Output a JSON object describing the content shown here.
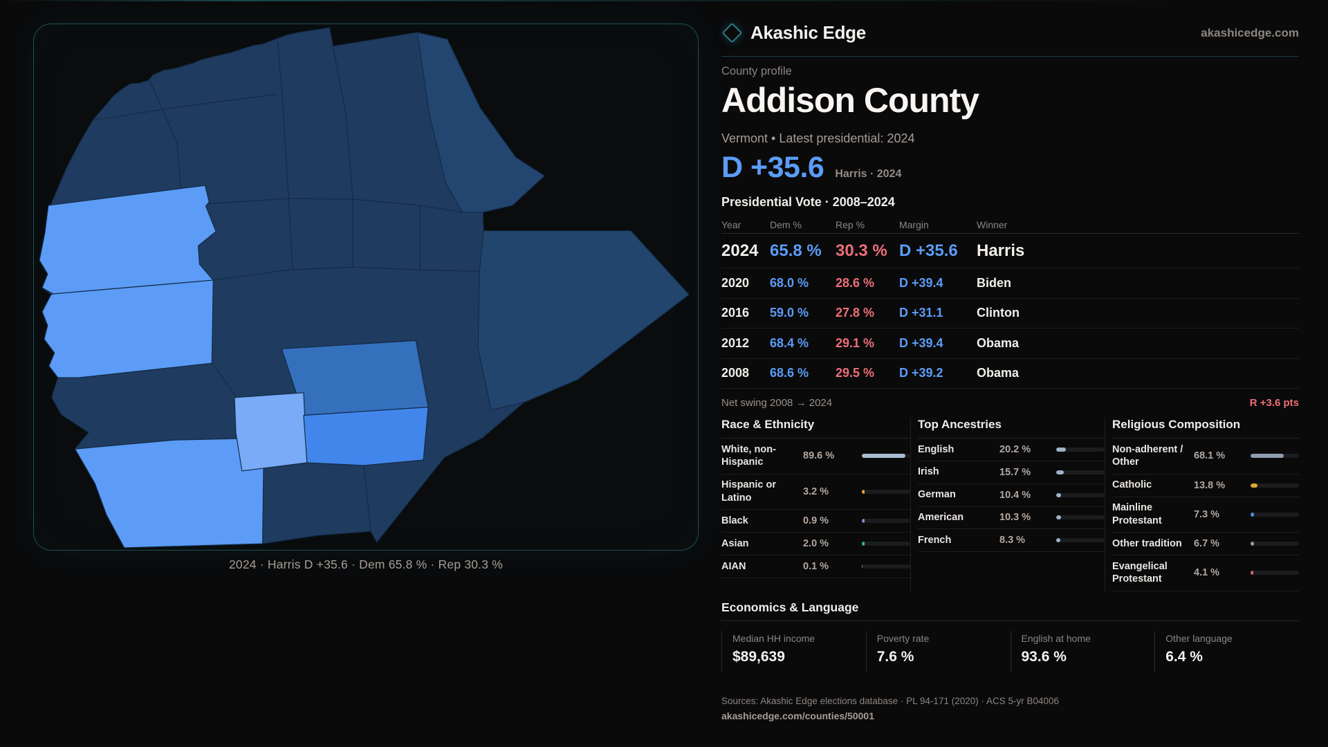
{
  "colors": {
    "dem_blue": "#5b9cf6",
    "rep_red": "#ee6f78",
    "map_dark": "#1f3b5f",
    "map_dark_alt": "#234670",
    "map_diamond": "#22456e",
    "map_light": "#5c9cf6",
    "map_medium": "#3570bd",
    "map_bright": "#4286ec",
    "map_pale": "#79abf7",
    "panel_border": "#1d5058"
  },
  "header": {
    "brand": "Akashic Edge",
    "site": "akashicedge.com"
  },
  "profile": {
    "kicker": "County profile",
    "title": "Addison County",
    "subtitle": "Vermont • Latest presidential: 2024",
    "headline_margin": "D +35.6",
    "headline_note": "Harris · 2024"
  },
  "results": {
    "title": "Presidential Vote · 2008–2024",
    "columns": [
      "Year",
      "Dem %",
      "Rep %",
      "Margin",
      "Winner"
    ],
    "rows": [
      {
        "year": "2024",
        "dem": "65.8 %",
        "rep": "30.3 %",
        "margin": "D +35.6",
        "winner": "Harris"
      },
      {
        "year": "2020",
        "dem": "68.0 %",
        "rep": "28.6 %",
        "margin": "D +39.4",
        "winner": "Biden"
      },
      {
        "year": "2016",
        "dem": "59.0 %",
        "rep": "27.8 %",
        "margin": "D +31.1",
        "winner": "Clinton"
      },
      {
        "year": "2012",
        "dem": "68.4 %",
        "rep": "29.1 %",
        "margin": "D +39.4",
        "winner": "Obama"
      },
      {
        "year": "2008",
        "dem": "68.6 %",
        "rep": "29.5 %",
        "margin": "D +39.2",
        "winner": "Obama"
      }
    ],
    "net_swing_label": "Net swing 2008 → 2024",
    "net_swing_value": "R +3.6 pts"
  },
  "demographics": [
    {
      "title": "Race & Ethnicity",
      "rows": [
        {
          "label": "White, non-Hispanic",
          "value": "89.6 %",
          "pct": 89.6,
          "color": "#a9bcd3"
        },
        {
          "label": "Hispanic or Latino",
          "value": "3.2 %",
          "pct": 3.2,
          "color": "#e6a23a"
        },
        {
          "label": "Black",
          "value": "0.9 %",
          "pct": 0.9,
          "color": "#8b82dd"
        },
        {
          "label": "Asian",
          "value": "2.0 %",
          "pct": 2.0,
          "color": "#2ebd86"
        },
        {
          "label": "AIAN",
          "value": "0.1 %",
          "pct": 0.1,
          "color": "#9aa4ad"
        }
      ]
    },
    {
      "title": "Top Ancestries",
      "rows": [
        {
          "label": "English",
          "value": "20.2 %",
          "pct": 20.2,
          "color": "#9fb2c8"
        },
        {
          "label": "Irish",
          "value": "15.7 %",
          "pct": 15.7,
          "color": "#9fb2c8"
        },
        {
          "label": "German",
          "value": "10.4 %",
          "pct": 10.4,
          "color": "#9fb2c8"
        },
        {
          "label": "American",
          "value": "10.3 %",
          "pct": 10.3,
          "color": "#9fb2c8"
        },
        {
          "label": "French",
          "value": "8.3 %",
          "pct": 8.3,
          "color": "#9fb2c8"
        }
      ]
    },
    {
      "title": "Religious Composition",
      "rows": [
        {
          "label": "Non-adherent / Other",
          "value": "68.1 %",
          "pct": 68.1,
          "color": "#8e9cb0"
        },
        {
          "label": "Catholic",
          "value": "13.8 %",
          "pct": 13.8,
          "color": "#d9a835"
        },
        {
          "label": "Mainline Protestant",
          "value": "7.3 %",
          "pct": 7.3,
          "color": "#4a90e8"
        },
        {
          "label": "Other tradition",
          "value": "6.7 %",
          "pct": 6.7,
          "color": "#979ca3"
        },
        {
          "label": "Evangelical Protestant",
          "value": "4.1 %",
          "pct": 4.1,
          "color": "#e0606a"
        }
      ]
    }
  ],
  "economics": {
    "title": "Economics & Language",
    "stats": [
      {
        "label": "Median HH income",
        "value": "$89,639"
      },
      {
        "label": "Poverty rate",
        "value": "7.6 %"
      },
      {
        "label": "English at home",
        "value": "93.6 %"
      },
      {
        "label": "Other language",
        "value": "6.4 %"
      }
    ]
  },
  "map": {
    "caption": "2024 · Harris D +35.6 · Dem 65.8 % · Rep 30.3 %"
  },
  "footer": {
    "sources": "Sources: Akashic Edge elections database · PL 94-171 (2020) · ACS 5-yr B04006",
    "url": "akashicedge.com/counties/50001"
  }
}
